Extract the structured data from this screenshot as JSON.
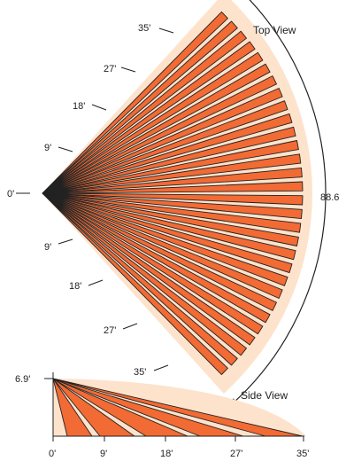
{
  "top_view": {
    "title": "Top View",
    "angle_label": "88.6",
    "center_label": "0'",
    "upper_distance_labels": [
      "9'",
      "18'",
      "27'",
      "35'"
    ],
    "lower_distance_labels": [
      "9'",
      "18'",
      "27'",
      "35'"
    ],
    "beam_count": 30
  },
  "side_view": {
    "title": "Side View",
    "height_label": "6.9'",
    "axis_labels": [
      "0'",
      "9'",
      "18'",
      "27'",
      "35'"
    ],
    "beam_count": 5
  },
  "colors": {
    "coverage_fill": "#fde3cc",
    "beam_fill": "#f26a34",
    "stroke": "#222222"
  }
}
